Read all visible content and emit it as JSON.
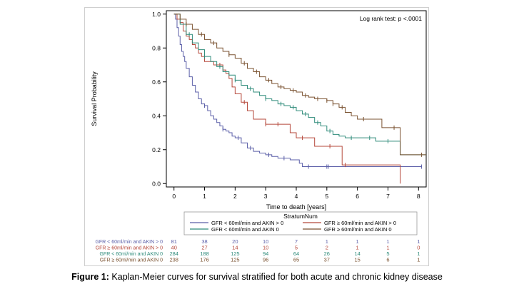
{
  "chart_data": {
    "type": "line",
    "xlabel": "Time to death [years]",
    "ylabel": "Survival Probability",
    "xlim": [
      -0.25,
      8.25
    ],
    "ylim": [
      -0.02,
      1.02
    ],
    "x_ticks": [
      0,
      1,
      2,
      3,
      4,
      5,
      6,
      7,
      8
    ],
    "y_ticks": [
      "0.0",
      "0.2",
      "0.4",
      "0.6",
      "0.8",
      "1.0"
    ],
    "annotation": "Log rank test: p <.0001",
    "legend": {
      "title": "StratumNum",
      "placement": "bottom",
      "entries": [
        "GFR < 60ml/min and AKIN > 0",
        "GFR ≥ 60ml/min and AKIN > 0",
        "GFR < 60ml/min and AKIN 0",
        "GFR ≥ 60ml/min and AKIN 0"
      ]
    },
    "series": [
      {
        "name": "GFR < 60ml/min and AKIN > 0",
        "color": "#5b5fa8",
        "x": [
          0,
          0.05,
          0.1,
          0.15,
          0.2,
          0.25,
          0.3,
          0.35,
          0.4,
          0.5,
          0.6,
          0.7,
          0.8,
          0.9,
          1.0,
          1.1,
          1.2,
          1.3,
          1.4,
          1.5,
          1.6,
          1.7,
          1.8,
          1.9,
          2.0,
          2.2,
          2.4,
          2.6,
          2.8,
          3.0,
          3.2,
          3.4,
          3.6,
          3.8,
          4.0,
          4.1,
          4.2,
          5.0,
          6.0,
          7.0,
          8.1
        ],
        "y": [
          1.0,
          0.97,
          0.92,
          0.87,
          0.82,
          0.78,
          0.75,
          0.72,
          0.68,
          0.63,
          0.58,
          0.54,
          0.5,
          0.47,
          0.46,
          0.43,
          0.4,
          0.38,
          0.36,
          0.34,
          0.32,
          0.31,
          0.3,
          0.28,
          0.27,
          0.24,
          0.21,
          0.19,
          0.18,
          0.17,
          0.16,
          0.15,
          0.15,
          0.14,
          0.14,
          0.12,
          0.1,
          0.1,
          0.1,
          0.1,
          0.1
        ],
        "censor_x": [
          1.0,
          1.6,
          2.1,
          2.5,
          3.1,
          3.6,
          4.4,
          5.0,
          5.05,
          8.1
        ]
      },
      {
        "name": "GFR ≥ 60ml/min and AKIN > 0",
        "color": "#b5473a",
        "x": [
          0,
          0.1,
          0.2,
          0.3,
          0.4,
          0.5,
          0.6,
          0.7,
          0.8,
          0.9,
          1.0,
          1.3,
          1.5,
          1.6,
          1.7,
          1.8,
          1.9,
          2.0,
          2.2,
          2.4,
          2.6,
          2.8,
          3.0,
          3.5,
          3.8,
          4.0,
          4.4,
          4.6,
          5.3,
          5.5,
          7.4
        ],
        "y": [
          1.0,
          0.97,
          0.95,
          0.9,
          0.87,
          0.85,
          0.82,
          0.8,
          0.77,
          0.75,
          0.72,
          0.7,
          0.7,
          0.67,
          0.65,
          0.62,
          0.57,
          0.53,
          0.48,
          0.43,
          0.38,
          0.38,
          0.35,
          0.35,
          0.3,
          0.27,
          0.27,
          0.22,
          0.22,
          0.11,
          0.0
        ],
        "censor_x": [
          1.5,
          2.3,
          3.0,
          3.4,
          4.2,
          5.1,
          5.6
        ]
      },
      {
        "name": "GFR < 60ml/min and AKIN 0",
        "color": "#2e8b7a",
        "x": [
          0,
          0.2,
          0.4,
          0.6,
          0.8,
          1.0,
          1.2,
          1.4,
          1.6,
          1.8,
          2.0,
          2.2,
          2.4,
          2.6,
          2.8,
          3.0,
          3.2,
          3.4,
          3.6,
          3.8,
          4.0,
          4.2,
          4.4,
          4.6,
          4.8,
          5.0,
          5.2,
          5.4,
          5.6,
          6.2,
          6.6,
          7.4,
          8.25
        ],
        "y": [
          1.0,
          0.94,
          0.88,
          0.83,
          0.79,
          0.75,
          0.72,
          0.69,
          0.66,
          0.64,
          0.61,
          0.58,
          0.56,
          0.54,
          0.52,
          0.5,
          0.49,
          0.47,
          0.46,
          0.45,
          0.43,
          0.41,
          0.39,
          0.36,
          0.34,
          0.31,
          0.29,
          0.28,
          0.27,
          0.27,
          0.25,
          0.17,
          0.17
        ],
        "censor_x": [
          0.5,
          1.0,
          1.5,
          2.0,
          2.5,
          3.0,
          3.5,
          3.9,
          4.3,
          4.7,
          5.1,
          5.8,
          6.4,
          7.0
        ]
      },
      {
        "name": "GFR ≥ 60ml/min and AKIN 0",
        "color": "#7a5230",
        "x": [
          0,
          0.2,
          0.4,
          0.6,
          0.8,
          1.0,
          1.2,
          1.4,
          1.6,
          1.8,
          2.0,
          2.2,
          2.4,
          2.6,
          2.8,
          3.0,
          3.2,
          3.4,
          3.6,
          3.8,
          4.0,
          4.2,
          4.4,
          4.6,
          4.8,
          5.0,
          5.2,
          5.4,
          5.6,
          5.8,
          6.0,
          6.6,
          6.8,
          7.4,
          7.9,
          8.25
        ],
        "y": [
          1.0,
          0.97,
          0.94,
          0.91,
          0.88,
          0.85,
          0.83,
          0.8,
          0.78,
          0.76,
          0.74,
          0.71,
          0.68,
          0.66,
          0.63,
          0.61,
          0.59,
          0.57,
          0.56,
          0.55,
          0.54,
          0.52,
          0.51,
          0.5,
          0.5,
          0.49,
          0.47,
          0.45,
          0.42,
          0.4,
          0.38,
          0.38,
          0.33,
          0.17,
          0.17,
          0.17
        ],
        "censor_x": [
          0.4,
          0.9,
          1.3,
          1.8,
          2.3,
          2.7,
          3.1,
          3.5,
          3.9,
          4.3,
          4.7,
          5.0,
          5.2,
          5.5,
          6.2,
          7.2,
          8.1
        ]
      }
    ],
    "risk_table": {
      "rows": [
        {
          "label": "GFR < 60ml/min and AKIN > 0",
          "color": "#5b5fa8",
          "values": [
            "81",
            "38",
            "20",
            "10",
            "7",
            "1",
            "1",
            "1",
            "1"
          ]
        },
        {
          "label": "GFR ≥ 60ml/min and AKIN > 0",
          "color": "#b5473a",
          "values": [
            "40",
            "27",
            "14",
            "10",
            "5",
            "2",
            "1",
            "1",
            "0"
          ]
        },
        {
          "label": "GFR < 60ml/min and AKIN 0",
          "color": "#2e8b7a",
          "values": [
            "284",
            "188",
            "125",
            "94",
            "64",
            "26",
            "14",
            "5",
            "1"
          ]
        },
        {
          "label": "GFR ≥ 60ml/min and AKIN 0",
          "color": "#7a5230",
          "values": [
            "238",
            "176",
            "125",
            "96",
            "65",
            "37",
            "15",
            "6",
            "1"
          ]
        }
      ]
    }
  },
  "caption": {
    "prefix": "Figure 1:",
    "text": " Kaplan-Meier curves for survival stratified for both acute and chronic kidney disease"
  }
}
